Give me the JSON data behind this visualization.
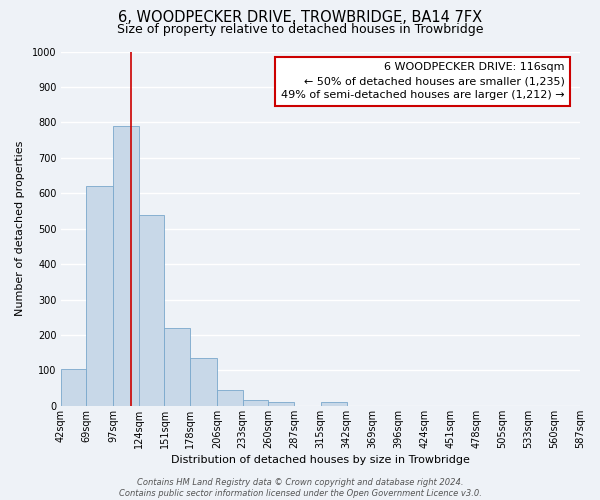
{
  "title": "6, WOODPECKER DRIVE, TROWBRIDGE, BA14 7FX",
  "subtitle": "Size of property relative to detached houses in Trowbridge",
  "xlabel": "Distribution of detached houses by size in Trowbridge",
  "ylabel": "Number of detached properties",
  "footer_line1": "Contains HM Land Registry data © Crown copyright and database right 2024.",
  "footer_line2": "Contains public sector information licensed under the Open Government Licence v3.0.",
  "bar_edges": [
    42,
    69,
    97,
    124,
    151,
    178,
    206,
    233,
    260,
    287,
    315,
    342,
    369,
    396,
    424,
    451,
    478,
    505,
    533,
    560,
    587
  ],
  "bar_heights": [
    105,
    620,
    790,
    540,
    220,
    135,
    45,
    18,
    10,
    0,
    10,
    0,
    0,
    0,
    0,
    0,
    0,
    0,
    0,
    0
  ],
  "bar_color": "#c8d8e8",
  "bar_edge_color": "#7aa8cc",
  "property_line_x": 116,
  "property_line_color": "#cc0000",
  "annotation_line1": "6 WOODPECKER DRIVE: 116sqm",
  "annotation_line2": "← 50% of detached houses are smaller (1,235)",
  "annotation_line3": "49% of semi-detached houses are larger (1,212) →",
  "annotation_box_color": "#cc0000",
  "annotation_box_bg": "#ffffff",
  "ylim": [
    0,
    1000
  ],
  "tick_labels": [
    "42sqm",
    "69sqm",
    "97sqm",
    "124sqm",
    "151sqm",
    "178sqm",
    "206sqm",
    "233sqm",
    "260sqm",
    "287sqm",
    "315sqm",
    "342sqm",
    "369sqm",
    "396sqm",
    "424sqm",
    "451sqm",
    "478sqm",
    "505sqm",
    "533sqm",
    "560sqm",
    "587sqm"
  ],
  "background_color": "#eef2f7",
  "grid_color": "#ffffff",
  "title_fontsize": 10.5,
  "subtitle_fontsize": 9,
  "axis_label_fontsize": 8,
  "tick_fontsize": 7,
  "annotation_fontsize": 8,
  "footer_fontsize": 6
}
